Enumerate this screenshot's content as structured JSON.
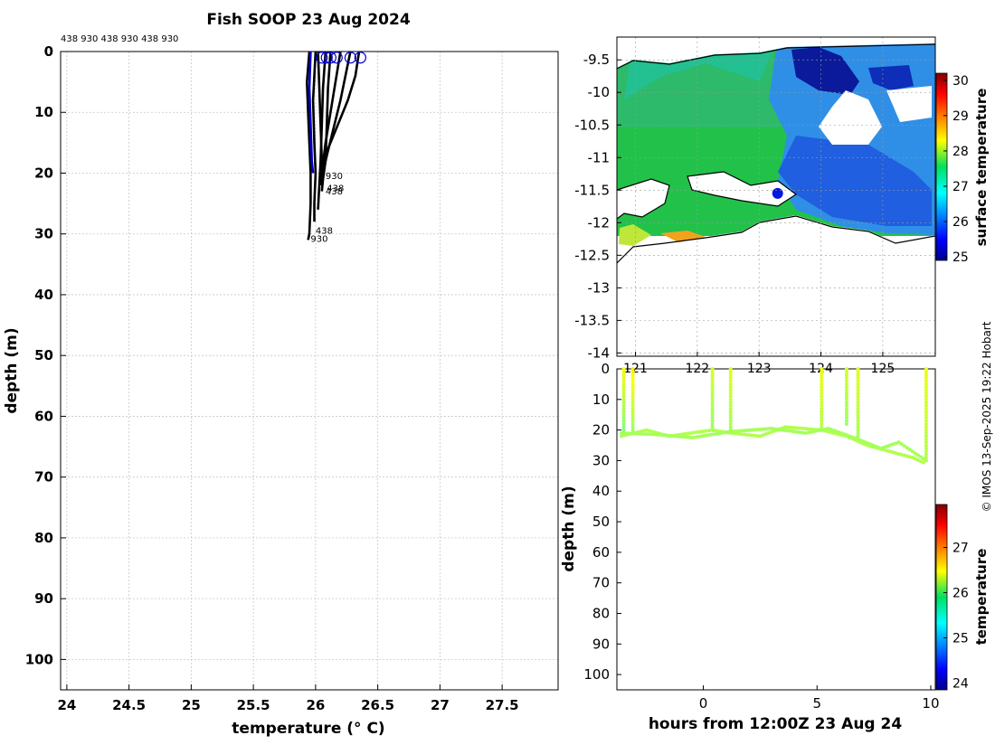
{
  "chart_data": [
    {
      "type": "line",
      "name": "temperature-depth-profiles",
      "title": "Fish SOOP 23 Aug 2024",
      "top_labels": "438 930 438 930 438 930",
      "xlabel": "temperature (° C)",
      "ylabel": "depth (m)",
      "xlim": [
        23.95,
        27.95
      ],
      "ylim": [
        105,
        0
      ],
      "xticks": [
        24,
        24.5,
        25,
        25.5,
        26,
        26.5,
        27,
        27.5
      ],
      "yticks": [
        0,
        10,
        20,
        30,
        40,
        50,
        60,
        70,
        80,
        90,
        100
      ],
      "grid": true,
      "series": [
        {
          "name": "profile-1",
          "color": "#000000",
          "points": [
            [
              25.95,
              0
            ],
            [
              25.93,
              5
            ],
            [
              25.94,
              10
            ],
            [
              25.95,
              15
            ],
            [
              25.96,
              20
            ],
            [
              25.96,
              25
            ],
            [
              25.95,
              30
            ],
            [
              25.94,
              31
            ]
          ]
        },
        {
          "name": "profile-2",
          "color": "#000000",
          "points": [
            [
              26.0,
              0
            ],
            [
              25.98,
              8
            ],
            [
              25.99,
              15
            ],
            [
              26.0,
              20
            ],
            [
              25.99,
              25
            ],
            [
              25.99,
              28
            ]
          ]
        },
        {
          "name": "profile-3",
          "color": "#000000",
          "points": [
            [
              26.08,
              0
            ],
            [
              26.06,
              6
            ],
            [
              26.05,
              12
            ],
            [
              26.04,
              18
            ],
            [
              26.03,
              22
            ],
            [
              26.02,
              26
            ]
          ]
        },
        {
          "name": "profile-4",
          "color": "#000000",
          "points": [
            [
              26.12,
              0
            ],
            [
              26.1,
              6
            ],
            [
              26.09,
              12
            ],
            [
              26.08,
              18
            ],
            [
              26.06,
              21
            ],
            [
              26.05,
              23
            ]
          ]
        },
        {
          "name": "profile-5",
          "color": "#000000",
          "points": [
            [
              26.2,
              0
            ],
            [
              26.16,
              5
            ],
            [
              26.12,
              10
            ],
            [
              26.08,
              15
            ],
            [
              26.05,
              20
            ],
            [
              26.04,
              22
            ]
          ]
        },
        {
          "name": "profile-6",
          "color": "#000000",
          "points": [
            [
              26.28,
              0
            ],
            [
              26.24,
              4
            ],
            [
              26.2,
              8
            ],
            [
              26.14,
              13
            ],
            [
              26.08,
              18
            ],
            [
              26.05,
              21
            ]
          ]
        },
        {
          "name": "profile-7",
          "color": "#000000",
          "points": [
            [
              26.35,
              0
            ],
            [
              26.32,
              4
            ],
            [
              26.26,
              8
            ],
            [
              26.18,
              12
            ],
            [
              26.1,
              16
            ],
            [
              26.06,
              20
            ],
            [
              26.04,
              22
            ]
          ]
        },
        {
          "name": "profile-8",
          "color": "#000000",
          "points": [
            [
              26.02,
              0
            ],
            [
              26.03,
              6
            ],
            [
              26.04,
              12
            ],
            [
              26.05,
              18
            ],
            [
              26.05,
              22
            ]
          ]
        },
        {
          "name": "profile-blue",
          "color": "#0000cc",
          "points": [
            [
              25.96,
              0
            ],
            [
              25.95,
              6
            ],
            [
              25.96,
              12
            ],
            [
              25.97,
              18
            ],
            [
              25.98,
              20
            ]
          ]
        }
      ],
      "surface_markers": [
        {
          "x": 26.05,
          "y": 1
        },
        {
          "x": 26.09,
          "y": 1
        },
        {
          "x": 26.12,
          "y": 1
        },
        {
          "x": 26.17,
          "y": 1
        },
        {
          "x": 26.28,
          "y": 1
        },
        {
          "x": 26.36,
          "y": 1
        }
      ],
      "profile_annotations": [
        {
          "text": "930",
          "x": 26.08,
          "y": 21
        },
        {
          "text": "438",
          "x": 26.09,
          "y": 23
        },
        {
          "text": "438",
          "x": 26.08,
          "y": 23.5
        },
        {
          "text": "438",
          "x": 26.0,
          "y": 30
        },
        {
          "text": "930",
          "x": 25.96,
          "y": 31.3
        }
      ]
    },
    {
      "type": "heatmap",
      "name": "sst-map",
      "colorbar_label": "surface temperature",
      "colorbar_ticks": [
        25,
        26,
        27,
        28,
        29,
        30
      ],
      "colorbar_range": [
        24.9,
        30.2
      ],
      "xlim": [
        120.7,
        125.85
      ],
      "ylim": [
        -14.05,
        -9.15
      ],
      "xticks": [
        121,
        122,
        123,
        124,
        125
      ],
      "xtick_labels": [
        "121",
        "122",
        "123",
        "124",
        "125"
      ],
      "yticks": [
        -9.5,
        -10,
        -10.5,
        -11,
        -11.5,
        -12,
        -12.5,
        -13,
        -13.5,
        -14
      ],
      "ytick_labels": [
        "-9.5",
        "-10",
        "-10.5",
        "-11",
        "-11.5",
        "-12",
        "-12.5",
        "-13",
        "-13.5",
        "-14"
      ],
      "ship_track_position": {
        "lon": 123.3,
        "lat": -11.55
      }
    },
    {
      "type": "scatter",
      "name": "depth-time-section",
      "xlabel": "hours from 12:00Z 23 Aug 24",
      "ylabel": "depth (m)",
      "xlim": [
        -3.8,
        10.2
      ],
      "ylim": [
        105,
        0
      ],
      "xticks": [
        0,
        5,
        10
      ],
      "yticks": [
        0,
        10,
        20,
        30,
        40,
        50,
        60,
        70,
        80,
        90,
        100
      ],
      "colorbar_label": "temperature",
      "colorbar_ticks": [
        24,
        25,
        26,
        27
      ],
      "colorbar_range": [
        23.85,
        27.95
      ],
      "casts": [
        {
          "t": -3.5,
          "max_depth": 21,
          "temp": 25.9
        },
        {
          "t": -3.1,
          "max_depth": 21,
          "temp": 26.0
        },
        {
          "t": 0.4,
          "max_depth": 20,
          "temp": 26.0
        },
        {
          "t": 1.2,
          "max_depth": 20,
          "temp": 26.05
        },
        {
          "t": 5.2,
          "max_depth": 20,
          "temp": 26.1
        },
        {
          "t": 6.3,
          "max_depth": 18,
          "temp": 26.0
        },
        {
          "t": 6.8,
          "max_depth": 23,
          "temp": 26.05
        },
        {
          "t": 9.8,
          "max_depth": 30,
          "temp": 26.1
        }
      ],
      "bottom_track": [
        [
          -3.6,
          22
        ],
        [
          -2.5,
          20
        ],
        [
          -1.5,
          22
        ],
        [
          0.4,
          20
        ],
        [
          1.2,
          21
        ],
        [
          2.5,
          22
        ],
        [
          3.6,
          19
        ],
        [
          5.2,
          20
        ],
        [
          6.3,
          22
        ],
        [
          7.2,
          25
        ],
        [
          8.2,
          27
        ],
        [
          9.2,
          29
        ],
        [
          9.8,
          31
        ]
      ],
      "bottom_track_2": [
        [
          -3.6,
          21
        ],
        [
          -2.0,
          21.5
        ],
        [
          -0.5,
          22.5
        ],
        [
          1.2,
          20.5
        ],
        [
          3.0,
          19.5
        ],
        [
          4.5,
          21
        ],
        [
          5.5,
          19.5
        ],
        [
          6.8,
          23
        ],
        [
          7.8,
          26
        ],
        [
          8.6,
          24
        ],
        [
          9.8,
          30
        ]
      ]
    }
  ],
  "credit": "© IMOS 13-Sep-2025 19:22 Hobart",
  "colors": {
    "profile": "#000000",
    "blue_profile": "#0000cc",
    "grid": "#c8c8c8",
    "land": "#ffffff"
  }
}
